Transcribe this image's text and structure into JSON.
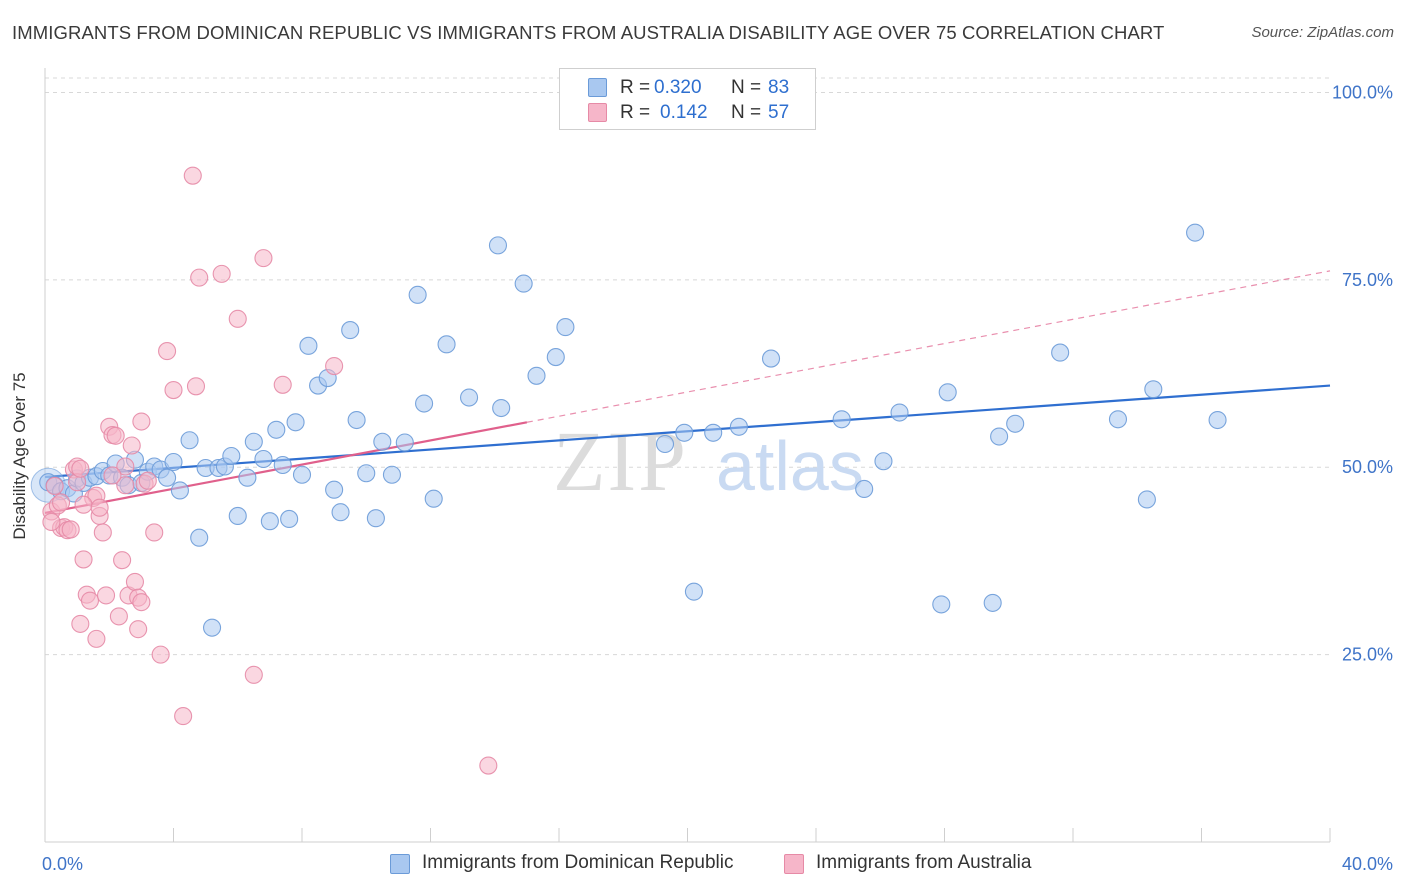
{
  "title": "IMMIGRANTS FROM DOMINICAN REPUBLIC VS IMMIGRANTS FROM AUSTRALIA DISABILITY AGE OVER 75 CORRELATION CHART",
  "source": "Source: ZipAtlas.com",
  "watermark": {
    "zip": "ZIP",
    "atlas": "atlas"
  },
  "legend": {
    "r_label": "R =",
    "n_label": "N =",
    "rows": [
      {
        "r": "0.320",
        "n": "83"
      },
      {
        "r": "0.142",
        "n": "57"
      }
    ]
  },
  "colors": {
    "blue_fill": "#a9c8f0",
    "blue_stroke": "#6b9bd8",
    "blue_line": "#2f6fd0",
    "pink_fill": "#f6b6c9",
    "pink_stroke": "#e68aa6",
    "pink_line": "#e0608c",
    "axis_text": "#3f74c8",
    "grid": "#d8d8d8"
  },
  "chart_data": {
    "type": "scatter",
    "title": "IMMIGRANTS FROM DOMINICAN REPUBLIC VS IMMIGRANTS FROM AUSTRALIA DISABILITY AGE OVER 75 CORRELATION CHART",
    "xlabel": "",
    "ylabel": "Disability Age Over 75",
    "xlim": [
      0,
      40
    ],
    "ylim": [
      0,
      103
    ],
    "x_tick_labels": [
      "0.0%",
      "40.0%"
    ],
    "y_tick_values": [
      25,
      50,
      75,
      100
    ],
    "y_tick_labels": [
      "25.0%",
      "50.0%",
      "75.0%",
      "100.0%"
    ],
    "grid": "horizontal dashed",
    "legend_position": "top-center",
    "series": [
      {
        "name": "Immigrants from Dominican Republic",
        "color": "#a9c8f0",
        "trend": {
          "x": [
            0,
            40
          ],
          "y": [
            48.7,
            60.9
          ],
          "style": "solid"
        },
        "points": [
          [
            0.1,
            48.0
          ],
          [
            0.3,
            47.6
          ],
          [
            0.5,
            46.8
          ],
          [
            0.7,
            47.2
          ],
          [
            0.9,
            46.5
          ],
          [
            1.0,
            48.5
          ],
          [
            1.2,
            47.9
          ],
          [
            1.4,
            48.6
          ],
          [
            1.6,
            48.8
          ],
          [
            1.8,
            49.5
          ],
          [
            2.0,
            48.9
          ],
          [
            2.2,
            50.5
          ],
          [
            2.4,
            48.6
          ],
          [
            2.6,
            47.6
          ],
          [
            2.8,
            51.0
          ],
          [
            3.0,
            47.9
          ],
          [
            3.2,
            49.4
          ],
          [
            3.4,
            50.1
          ],
          [
            3.6,
            49.7
          ],
          [
            3.8,
            48.6
          ],
          [
            4.0,
            50.7
          ],
          [
            4.2,
            46.9
          ],
          [
            4.5,
            53.6
          ],
          [
            4.8,
            40.6
          ],
          [
            5.0,
            49.9
          ],
          [
            5.2,
            28.6
          ],
          [
            5.4,
            49.9
          ],
          [
            5.6,
            50.1
          ],
          [
            5.8,
            51.5
          ],
          [
            6.0,
            43.5
          ],
          [
            6.3,
            48.6
          ],
          [
            6.5,
            53.4
          ],
          [
            6.8,
            51.1
          ],
          [
            7.0,
            42.8
          ],
          [
            7.2,
            55.0
          ],
          [
            7.4,
            50.3
          ],
          [
            7.6,
            43.1
          ],
          [
            7.8,
            56.0
          ],
          [
            8.0,
            49.0
          ],
          [
            8.2,
            66.2
          ],
          [
            8.5,
            60.9
          ],
          [
            8.8,
            61.9
          ],
          [
            9.0,
            47.0
          ],
          [
            9.2,
            44.0
          ],
          [
            9.5,
            68.3
          ],
          [
            9.7,
            56.3
          ],
          [
            10.0,
            49.2
          ],
          [
            10.3,
            43.2
          ],
          [
            10.5,
            53.4
          ],
          [
            10.8,
            49.0
          ],
          [
            11.2,
            53.3
          ],
          [
            11.6,
            73.0
          ],
          [
            11.8,
            58.5
          ],
          [
            12.1,
            45.8
          ],
          [
            12.5,
            66.4
          ],
          [
            13.2,
            59.3
          ],
          [
            14.1,
            79.6
          ],
          [
            14.2,
            57.9
          ],
          [
            14.9,
            74.5
          ],
          [
            15.3,
            62.2
          ],
          [
            15.9,
            64.7
          ],
          [
            16.2,
            68.7
          ],
          [
            19.3,
            53.1
          ],
          [
            19.9,
            54.6
          ],
          [
            20.8,
            54.6
          ],
          [
            21.6,
            55.4
          ],
          [
            20.2,
            33.4
          ],
          [
            22.6,
            64.5
          ],
          [
            24.8,
            56.4
          ],
          [
            25.5,
            47.1
          ],
          [
            26.1,
            50.8
          ],
          [
            26.6,
            57.3
          ],
          [
            27.9,
            31.7
          ],
          [
            28.1,
            60.0
          ],
          [
            29.5,
            31.9
          ],
          [
            29.7,
            54.1
          ],
          [
            30.2,
            55.8
          ],
          [
            31.6,
            65.3
          ],
          [
            33.4,
            56.4
          ],
          [
            34.3,
            45.7
          ],
          [
            34.5,
            60.4
          ],
          [
            35.8,
            81.3
          ],
          [
            36.5,
            56.3
          ]
        ]
      },
      {
        "name": "Immigrants from Australia",
        "color": "#f6b6c9",
        "trend": {
          "x": [
            0,
            15
          ],
          "y": [
            43.9,
            56.0
          ],
          "style": "solid",
          "extended": {
            "x": [
              15,
              40
            ],
            "y": [
              56.0,
              76.2
            ],
            "style": "dashed"
          }
        },
        "points": [
          [
            0.2,
            44.1
          ],
          [
            0.4,
            44.9
          ],
          [
            0.5,
            41.9
          ],
          [
            0.6,
            42.0
          ],
          [
            0.7,
            41.6
          ],
          [
            0.9,
            49.7
          ],
          [
            1.0,
            50.1
          ],
          [
            1.0,
            48.0
          ],
          [
            1.1,
            49.8
          ],
          [
            1.1,
            29.1
          ],
          [
            1.2,
            37.7
          ],
          [
            1.3,
            33.0
          ],
          [
            1.4,
            32.2
          ],
          [
            1.5,
            45.9
          ],
          [
            1.6,
            46.2
          ],
          [
            1.6,
            27.1
          ],
          [
            1.7,
            43.5
          ],
          [
            1.8,
            41.3
          ],
          [
            1.9,
            32.9
          ],
          [
            2.0,
            55.4
          ],
          [
            2.1,
            54.3
          ],
          [
            2.2,
            54.2
          ],
          [
            2.3,
            30.1
          ],
          [
            2.4,
            37.6
          ],
          [
            2.5,
            50.1
          ],
          [
            2.5,
            47.6
          ],
          [
            2.6,
            32.9
          ],
          [
            2.7,
            52.9
          ],
          [
            2.8,
            34.7
          ],
          [
            2.9,
            28.4
          ],
          [
            2.9,
            32.6
          ],
          [
            3.0,
            32.0
          ],
          [
            3.0,
            56.1
          ],
          [
            3.1,
            47.8
          ],
          [
            3.2,
            48.2
          ],
          [
            3.6,
            25.0
          ],
          [
            3.8,
            65.5
          ],
          [
            4.0,
            60.3
          ],
          [
            4.3,
            16.8
          ],
          [
            4.6,
            88.9
          ],
          [
            4.7,
            60.8
          ],
          [
            4.8,
            75.3
          ],
          [
            5.5,
            75.8
          ],
          [
            6.0,
            69.8
          ],
          [
            6.5,
            22.3
          ],
          [
            6.8,
            77.9
          ],
          [
            7.4,
            61.0
          ],
          [
            9.0,
            63.5
          ],
          [
            13.8,
            10.2
          ],
          [
            0.3,
            47.5
          ],
          [
            0.8,
            41.7
          ],
          [
            1.2,
            45.0
          ],
          [
            1.7,
            44.6
          ],
          [
            2.1,
            48.9
          ],
          [
            0.2,
            42.7
          ],
          [
            0.5,
            45.3
          ],
          [
            3.4,
            41.3
          ]
        ]
      }
    ]
  },
  "bottom_legend": [
    "Immigrants from Dominican Republic",
    "Immigrants from Australia"
  ]
}
